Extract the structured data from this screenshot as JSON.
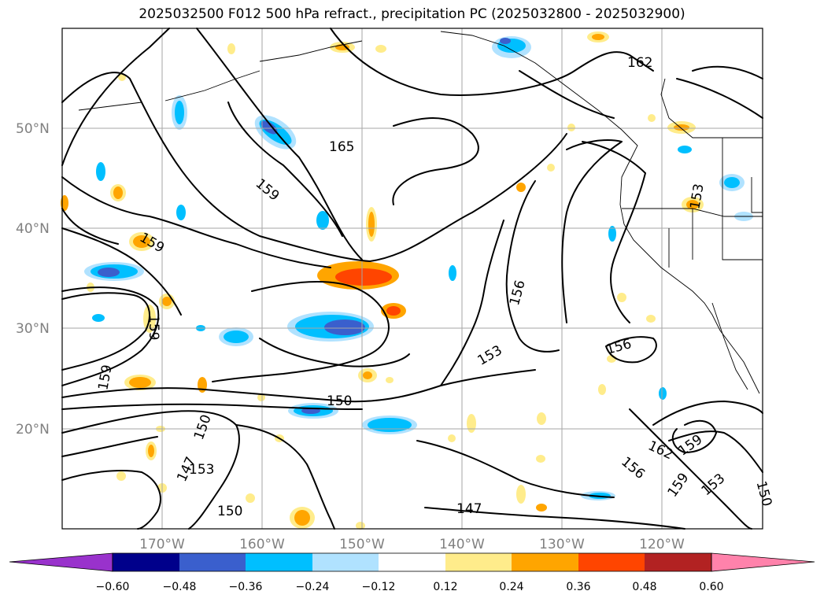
{
  "title": "2025032500 F012 500 hPa refract., precipitation PC (2025032800 - 2025032900)",
  "lat_labels": [
    "50°N",
    "40°N",
    "30°N",
    "20°N"
  ],
  "lon_labels": [
    "170°W",
    "160°W",
    "150°W",
    "140°W",
    "130°W",
    "120°W"
  ],
  "contour_labels": [
    "165",
    "162",
    "159",
    "159",
    "159",
    "159",
    "159",
    "159",
    "156",
    "156",
    "156",
    "153",
    "153",
    "153",
    "153",
    "150",
    "150",
    "150",
    "150",
    "147",
    "147",
    "162"
  ],
  "colorbar": {
    "ticks": [
      "−0.60",
      "−0.48",
      "−0.36",
      "−0.24",
      "−0.12",
      "0.12",
      "0.24",
      "0.36",
      "0.48",
      "0.60"
    ],
    "colors": [
      "#9932cc",
      "#00008b",
      "#3a5fcd",
      "#00bfff",
      "#b0e2ff",
      "#ffffff",
      "#ffec8b",
      "#ffa500",
      "#ff4500",
      "#b22222",
      "#ff82ab"
    ]
  }
}
